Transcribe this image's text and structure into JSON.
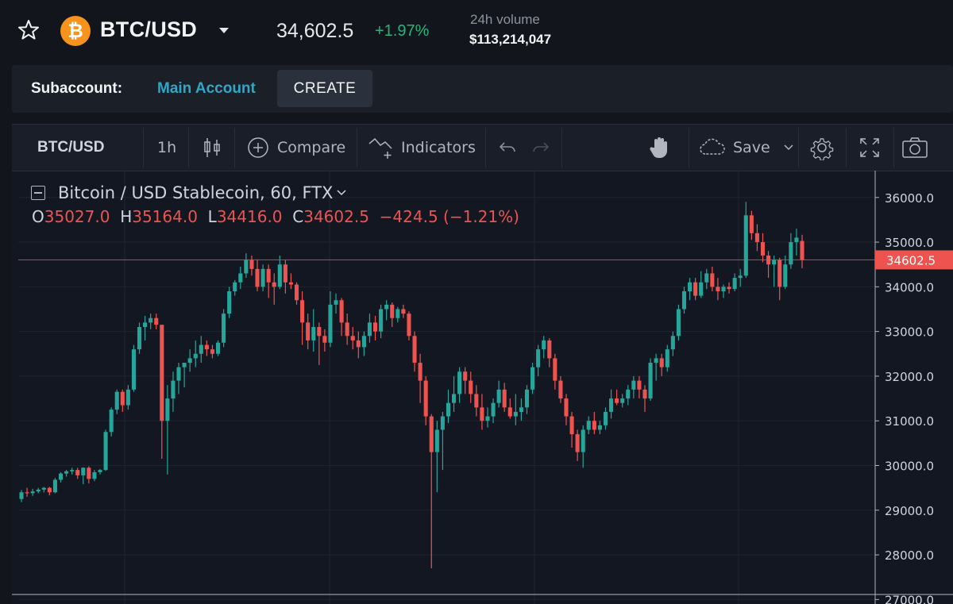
{
  "header": {
    "favorite_icon": "star-outline-icon",
    "coin_icon": "bitcoin-icon",
    "coin_symbol": "₿",
    "pair": "BTC/USD",
    "price": "34,602.5",
    "change": "+1.97%",
    "volume_label": "24h volume",
    "volume_value": "$113,214,047"
  },
  "subaccount": {
    "label": "Subaccount:",
    "account": "Main Account",
    "create_label": "CREATE"
  },
  "toolbar": {
    "symbol": "BTC/USD",
    "interval": "1h",
    "compare_label": "Compare",
    "indicators_label": "Indicators",
    "save_label": "Save"
  },
  "legend": {
    "title": "Bitcoin / USD Stablecoin, 60, FTX",
    "o_label": "O",
    "o_value": "35027.0",
    "h_label": "H",
    "h_value": "35164.0",
    "l_label": "L",
    "l_value": "34416.0",
    "c_label": "C",
    "c_value": "34602.5",
    "change_text": "−424.5 (−1.21%)"
  },
  "colors": {
    "up": "#26a69a",
    "down": "#ef5350",
    "accent": "#2ea7c8",
    "coin": "#f7931a"
  },
  "chart_data": {
    "type": "candlestick",
    "title": "Bitcoin / USD Stablecoin, 60, FTX",
    "last_price_label": "34602.5",
    "last_price": 34602.5,
    "ylim": [
      26900,
      36600
    ],
    "yticks": [
      "36000.0",
      "35000.0",
      "34000.0",
      "33000.0",
      "32000.0",
      "31000.0",
      "30000.0",
      "29000.0",
      "28000.0",
      "27000.0"
    ],
    "grid": true,
    "ohlc": [
      [
        29250,
        29450,
        29180,
        29400
      ],
      [
        29400,
        29500,
        29300,
        29380
      ],
      [
        29380,
        29480,
        29320,
        29420
      ],
      [
        29420,
        29500,
        29380,
        29460
      ],
      [
        29460,
        29520,
        29400,
        29500
      ],
      [
        29500,
        29520,
        29330,
        29400
      ],
      [
        29400,
        29720,
        29380,
        29680
      ],
      [
        29680,
        29850,
        29620,
        29820
      ],
      [
        29820,
        29900,
        29750,
        29870
      ],
      [
        29870,
        29950,
        29800,
        29900
      ],
      [
        29900,
        29950,
        29700,
        29780
      ],
      [
        29780,
        29960,
        29580,
        29950
      ],
      [
        29950,
        29980,
        29600,
        29700
      ],
      [
        29700,
        29900,
        29650,
        29850
      ],
      [
        29850,
        29920,
        29800,
        29900
      ],
      [
        29900,
        30800,
        29880,
        30750
      ],
      [
        30750,
        31300,
        30650,
        31250
      ],
      [
        31250,
        31700,
        31150,
        31650
      ],
      [
        31650,
        31700,
        31200,
        31350
      ],
      [
        31350,
        31800,
        31250,
        31700
      ],
      [
        31700,
        32700,
        31650,
        32600
      ],
      [
        32600,
        33200,
        32500,
        33100
      ],
      [
        33100,
        33350,
        32800,
        33200
      ],
      [
        33200,
        33400,
        33050,
        33300
      ],
      [
        33300,
        33400,
        33050,
        33150
      ],
      [
        33150,
        33150,
        30150,
        31000
      ],
      [
        31000,
        31800,
        29800,
        31500
      ],
      [
        31500,
        32100,
        31200,
        31900
      ],
      [
        31900,
        32300,
        31600,
        32200
      ],
      [
        32200,
        32300,
        31750,
        32300
      ],
      [
        32300,
        32600,
        32100,
        32400
      ],
      [
        32400,
        32800,
        32200,
        32500
      ],
      [
        32500,
        32900,
        32300,
        32700
      ],
      [
        32700,
        32800,
        32450,
        32600
      ],
      [
        32600,
        32700,
        32400,
        32500
      ],
      [
        32500,
        32800,
        32450,
        32750
      ],
      [
        32750,
        33500,
        32650,
        33400
      ],
      [
        33400,
        34000,
        33300,
        33900
      ],
      [
        33900,
        34150,
        33800,
        34100
      ],
      [
        34100,
        34450,
        33950,
        34300
      ],
      [
        34300,
        34750,
        34200,
        34600
      ],
      [
        34600,
        34700,
        34250,
        34400
      ],
      [
        34400,
        34600,
        33900,
        34000
      ],
      [
        34000,
        34500,
        33900,
        34400
      ],
      [
        34400,
        34500,
        33750,
        34100
      ],
      [
        34100,
        34300,
        33600,
        34000
      ],
      [
        34000,
        34700,
        33950,
        34500
      ],
      [
        34500,
        34600,
        33850,
        34100
      ],
      [
        34100,
        34300,
        33950,
        34050
      ],
      [
        34050,
        34100,
        33600,
        33700
      ],
      [
        33700,
        33900,
        32700,
        33200
      ],
      [
        33200,
        33400,
        32600,
        32800
      ],
      [
        32800,
        33500,
        32550,
        33100
      ],
      [
        33100,
        33200,
        32250,
        32900
      ],
      [
        32900,
        33050,
        32550,
        32750
      ],
      [
        32750,
        33900,
        32650,
        33600
      ],
      [
        33600,
        33850,
        33400,
        33700
      ],
      [
        33700,
        33750,
        32900,
        33200
      ],
      [
        33200,
        33400,
        32700,
        32900
      ],
      [
        32900,
        33100,
        32600,
        32800
      ],
      [
        32800,
        33000,
        32400,
        32650
      ],
      [
        32650,
        33000,
        32450,
        32900
      ],
      [
        32900,
        33400,
        32750,
        33200
      ],
      [
        33200,
        33350,
        32800,
        33000
      ],
      [
        33000,
        33600,
        32850,
        33500
      ],
      [
        33500,
        33700,
        33250,
        33600
      ],
      [
        33600,
        33650,
        33100,
        33300
      ],
      [
        33300,
        33550,
        33200,
        33500
      ],
      [
        33500,
        33600,
        33300,
        33400
      ],
      [
        33400,
        33450,
        32800,
        32900
      ],
      [
        32900,
        33000,
        32100,
        32300
      ],
      [
        32300,
        32500,
        31400,
        31900
      ],
      [
        31900,
        32000,
        30900,
        31100
      ],
      [
        31100,
        31150,
        27700,
        30300
      ],
      [
        30300,
        31000,
        29400,
        30800
      ],
      [
        30800,
        31200,
        29900,
        31100
      ],
      [
        31100,
        31700,
        30950,
        31400
      ],
      [
        31400,
        32000,
        31200,
        31600
      ],
      [
        31600,
        32200,
        31400,
        32100
      ],
      [
        32100,
        32200,
        31600,
        31900
      ],
      [
        31900,
        32100,
        31400,
        31600
      ],
      [
        31600,
        31800,
        31100,
        31300
      ],
      [
        31300,
        31600,
        30800,
        31000
      ],
      [
        31000,
        31300,
        30850,
        31100
      ],
      [
        31100,
        31500,
        30950,
        31400
      ],
      [
        31400,
        31900,
        31300,
        31700
      ],
      [
        31700,
        31850,
        31200,
        31300
      ],
      [
        31300,
        31500,
        31050,
        31100
      ],
      [
        31100,
        31600,
        30900,
        31200
      ],
      [
        31200,
        31500,
        31000,
        31300
      ],
      [
        31300,
        31800,
        31150,
        31700
      ],
      [
        31700,
        32300,
        31600,
        32200
      ],
      [
        32200,
        32700,
        32000,
        32600
      ],
      [
        32600,
        32900,
        32400,
        32800
      ],
      [
        32800,
        32850,
        32200,
        32400
      ],
      [
        32400,
        32500,
        31700,
        31900
      ],
      [
        31900,
        32000,
        31400,
        31500
      ],
      [
        31500,
        31600,
        30900,
        31100
      ],
      [
        31100,
        31200,
        30400,
        30700
      ],
      [
        30700,
        30800,
        30100,
        30300
      ],
      [
        30300,
        30900,
        29950,
        30800
      ],
      [
        30800,
        31100,
        30700,
        31000
      ],
      [
        31000,
        31200,
        30700,
        30800
      ],
      [
        30800,
        31000,
        30700,
        30900
      ],
      [
        30900,
        31300,
        30800,
        31200
      ],
      [
        31200,
        31700,
        31050,
        31500
      ],
      [
        31500,
        31700,
        31350,
        31400
      ],
      [
        31400,
        31600,
        31300,
        31500
      ],
      [
        31500,
        31800,
        31350,
        31700
      ],
      [
        31700,
        32000,
        31500,
        31900
      ],
      [
        31900,
        32000,
        31500,
        31700
      ],
      [
        31700,
        31800,
        31200,
        31500
      ],
      [
        31500,
        32400,
        31450,
        32300
      ],
      [
        32300,
        32500,
        31900,
        32400
      ],
      [
        32400,
        32500,
        32000,
        32200
      ],
      [
        32200,
        32700,
        32100,
        32600
      ],
      [
        32600,
        33000,
        32450,
        32900
      ],
      [
        32900,
        33600,
        32800,
        33500
      ],
      [
        33500,
        34000,
        33400,
        33900
      ],
      [
        33900,
        34200,
        33700,
        34100
      ],
      [
        34100,
        34200,
        33700,
        33800
      ],
      [
        33800,
        34350,
        33750,
        34100
      ],
      [
        34100,
        34400,
        33950,
        34300
      ],
      [
        34300,
        34450,
        33900,
        34000
      ],
      [
        34000,
        34200,
        33700,
        33900
      ],
      [
        33900,
        34050,
        33750,
        34000
      ],
      [
        34000,
        34100,
        33850,
        33950
      ],
      [
        33950,
        34300,
        33900,
        34200
      ],
      [
        34200,
        34400,
        34000,
        34250
      ],
      [
        34250,
        35900,
        34200,
        35600
      ],
      [
        35600,
        35700,
        35050,
        35200
      ],
      [
        35200,
        35400,
        34800,
        35000
      ],
      [
        35000,
        35200,
        34550,
        34700
      ],
      [
        34700,
        34800,
        34200,
        34500
      ],
      [
        34500,
        34700,
        34000,
        34600
      ],
      [
        34600,
        34650,
        33700,
        34000
      ],
      [
        34000,
        34700,
        33950,
        34500
      ],
      [
        34500,
        35200,
        34400,
        35000
      ],
      [
        35000,
        35300,
        34700,
        35100
      ],
      [
        35027,
        35164,
        34416,
        34602.5
      ]
    ]
  }
}
